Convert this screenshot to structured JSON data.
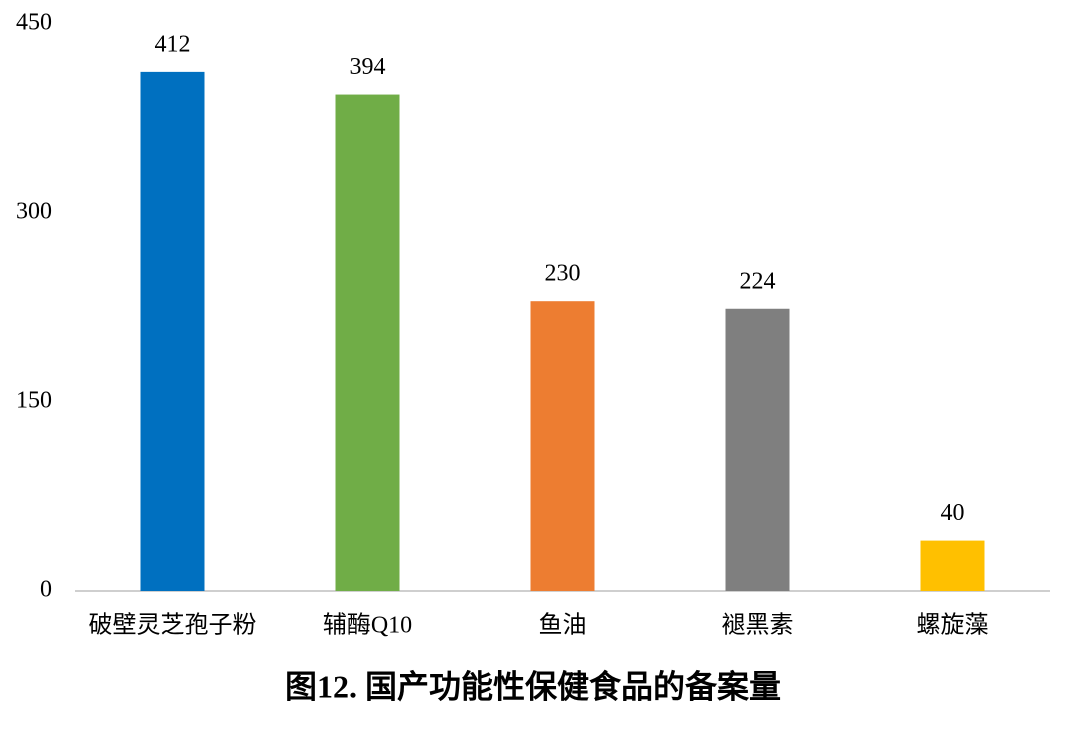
{
  "chart_data": {
    "type": "bar",
    "title": "图12. 国产功能性保健食品的备案量",
    "categories": [
      "破壁灵芝孢子粉",
      "辅酶Q10",
      "鱼油",
      "褪黑素",
      "螺旋藻"
    ],
    "values": [
      412,
      394,
      230,
      224,
      40
    ],
    "colors": [
      "#0070c0",
      "#70ad47",
      "#ed7d31",
      "#7f7f7f",
      "#ffc000"
    ],
    "ylim": [
      0,
      450
    ],
    "yticks": [
      0,
      150,
      300,
      450
    ],
    "grid": false
  }
}
